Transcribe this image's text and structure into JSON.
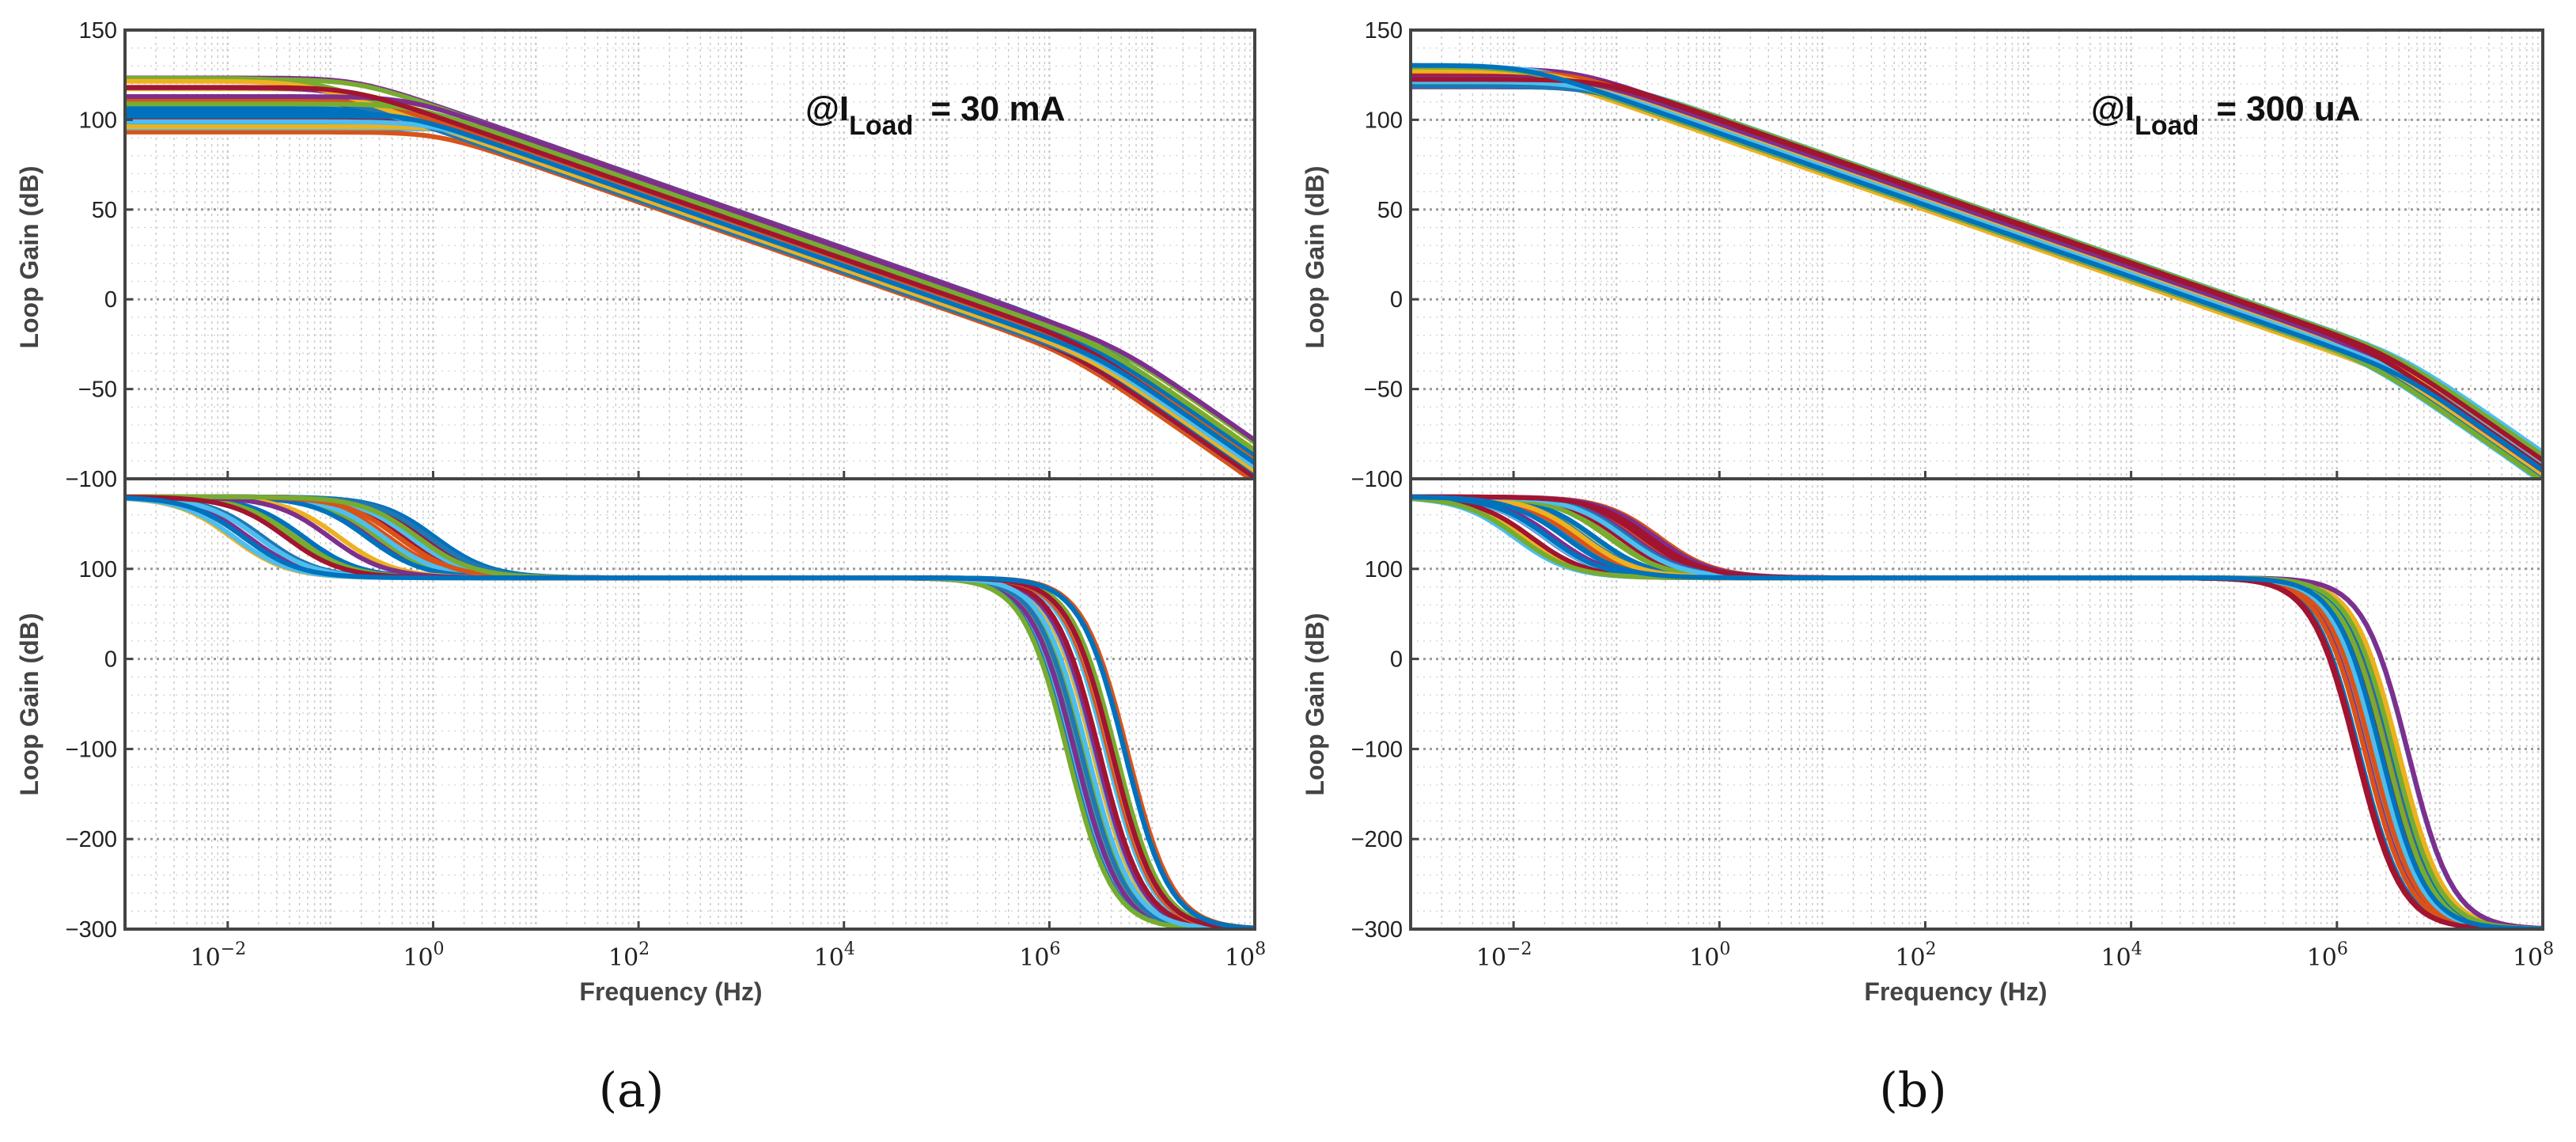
{
  "chart_data": [
    {
      "type": "line",
      "caption": "(a)",
      "annotation": {
        "prefix": "@I",
        "subscript": "Load",
        "suffix": "= 30 mA"
      },
      "xlabel": "Frequency (Hz)",
      "xscale": "log",
      "xlim": [
        0.001,
        100000000
      ],
      "xticks": [
        {
          "base": "10",
          "exp": "−2",
          "value": 0.01
        },
        {
          "base": "10",
          "exp": "0",
          "value": 1
        },
        {
          "base": "10",
          "exp": "2",
          "value": 100
        },
        {
          "base": "10",
          "exp": "4",
          "value": 10000
        },
        {
          "base": "10",
          "exp": "6",
          "value": 1000000
        },
        {
          "base": "10",
          "exp": "8",
          "value": 100000000
        }
      ],
      "grid": true,
      "subplots": [
        {
          "ylabel": "Loop Gain (dB)",
          "ylim": [
            -100,
            150
          ],
          "yticks": [
            {
              "label": "150",
              "value": 150
            },
            {
              "label": "100",
              "value": 100
            },
            {
              "label": "50",
              "value": 50
            },
            {
              "label": "0",
              "value": 0
            },
            {
              "label": "−50",
              "value": -50
            },
            {
              "label": "−100",
              "value": -100
            }
          ],
          "curve_model": "gain",
          "curves": {
            "count": 32,
            "dc_gain_range_db": [
              92,
              125
            ],
            "dominant_pole_hz_range": [
              0.1,
              1.5
            ],
            "unity_gain_hz_range": [
              50000,
              300000
            ],
            "second_pole_hz_range": [
              1500000,
              5000000
            ]
          }
        },
        {
          "ylabel": "Loop Gain (dB)",
          "ylim": [
            -300,
            200
          ],
          "yticks": [
            {
              "label": "100",
              "value": 100
            },
            {
              "label": "0",
              "value": 0
            },
            {
              "label": "−100",
              "value": -100
            },
            {
              "label": "−200",
              "value": -200
            },
            {
              "label": "−300",
              "value": -300
            }
          ],
          "curve_model": "phase",
          "curves": {
            "count": 32,
            "start_deg": 180,
            "plateau_deg": 90,
            "zero_hz_range": [
              0.01,
              1.5
            ],
            "rolloff_hz_range": [
              1500000,
              6000000
            ]
          }
        }
      ]
    },
    {
      "type": "line",
      "caption": "(b)",
      "annotation": {
        "prefix": "@I",
        "subscript": "Load",
        "suffix": "= 300 uA"
      },
      "xlabel": "Frequency (Hz)",
      "xscale": "log",
      "xlim": [
        0.001,
        100000000
      ],
      "xticks": [
        {
          "base": "10",
          "exp": "−2",
          "value": 0.01
        },
        {
          "base": "10",
          "exp": "0",
          "value": 1
        },
        {
          "base": "10",
          "exp": "2",
          "value": 100
        },
        {
          "base": "10",
          "exp": "4",
          "value": 10000
        },
        {
          "base": "10",
          "exp": "6",
          "value": 1000000
        },
        {
          "base": "10",
          "exp": "8",
          "value": 100000000
        }
      ],
      "grid": true,
      "subplots": [
        {
          "ylabel": "Loop Gain (dB)",
          "ylim": [
            -100,
            150
          ],
          "yticks": [
            {
              "label": "150",
              "value": 150
            },
            {
              "label": "100",
              "value": 100
            },
            {
              "label": "50",
              "value": 50
            },
            {
              "label": "0",
              "value": 0
            },
            {
              "label": "−50",
              "value": -50
            },
            {
              "label": "−100",
              "value": -100
            }
          ],
          "curve_model": "gain",
          "curves": {
            "count": 32,
            "dc_gain_range_db": [
              118,
              131
            ],
            "dominant_pole_hz_range": [
              0.06,
              0.15
            ],
            "unity_gain_hz_range": [
              30000,
              120000
            ],
            "second_pole_hz_range": [
              2000000,
              5000000
            ]
          }
        },
        {
          "ylabel": "Loop Gain (dB)",
          "ylim": [
            -300,
            200
          ],
          "yticks": [
            {
              "label": "100",
              "value": 100
            },
            {
              "label": "0",
              "value": 0
            },
            {
              "label": "−100",
              "value": -100
            },
            {
              "label": "−200",
              "value": -200
            },
            {
              "label": "−300",
              "value": -300
            }
          ],
          "curve_model": "phase",
          "curves": {
            "count": 32,
            "start_deg": 180,
            "plateau_deg": 90,
            "zero_hz_range": [
              0.01,
              0.3
            ],
            "rolloff_hz_range": [
              1500000,
              5000000
            ]
          }
        }
      ]
    }
  ],
  "palette": [
    "#1f77b4",
    "#d95319",
    "#edb120",
    "#7e2f8e",
    "#77ac30",
    "#4dbeee",
    "#a2142f",
    "#0072bd"
  ]
}
